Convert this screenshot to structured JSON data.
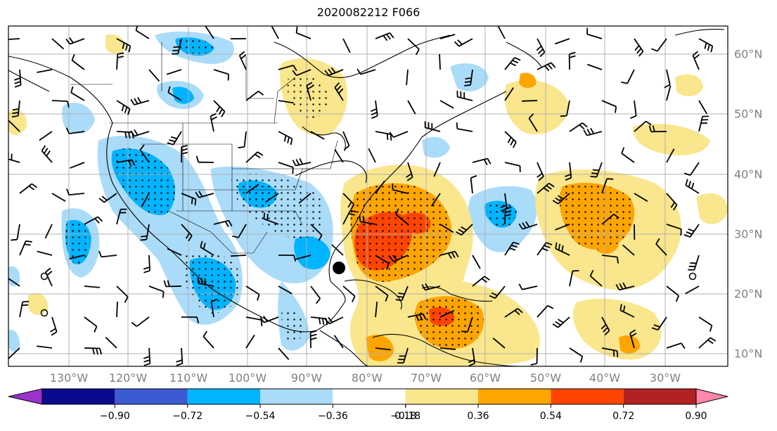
{
  "title": "2020082212 F066",
  "longitude_labels": [
    "130°W",
    "120°W",
    "110°W",
    "100°W",
    "90°W",
    "80°W",
    "70°W",
    "60°W",
    "50°W",
    "40°W",
    "30°W"
  ],
  "latitude_labels": [
    "60°N",
    "50°N",
    "40°N",
    "30°N",
    "20°N",
    "10°N"
  ],
  "colorbar": {
    "tick_labels": [
      "−0.90",
      "−0.72",
      "−0.54",
      "−0.36",
      "−0.18",
      "0.18",
      "0.36",
      "0.54",
      "0.72",
      "0.90"
    ],
    "colors": {
      "under": "#9a32cd",
      "bins": [
        "#0a0a8c",
        "#3c5ad2",
        "#00b4ff",
        "#aadcfa",
        "#ffffff",
        "#fae68c",
        "#ffa500",
        "#ff4500",
        "#b22222"
      ],
      "over": "#ff87a8"
    }
  },
  "map": {
    "positive_color": "#fae68c",
    "strong_positive_color": "#ffa500",
    "peak_positive_color": "#ff4500",
    "negative_color": "#aadcfa",
    "strong_negative_color": "#00b4ff",
    "marker": "storm-center-dot"
  }
}
